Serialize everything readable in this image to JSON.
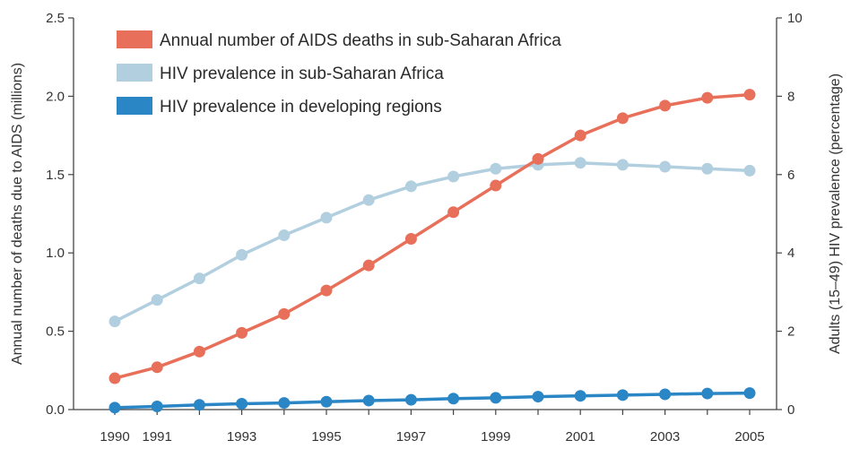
{
  "chart_data": {
    "type": "line",
    "title": "",
    "xlabel": "",
    "ylabel_left": "Annual number of deaths due to AIDS (millions)",
    "ylabel_right": "Adults (15–49) HIV prevalence (percentage)",
    "x": [
      1990,
      1991,
      1992,
      1993,
      1994,
      1995,
      1996,
      1997,
      1998,
      1999,
      2000,
      2001,
      2002,
      2003,
      2004,
      2005
    ],
    "x_tick_labels": [
      "1990",
      "1991",
      "1993",
      "1995",
      "1997",
      "1999",
      "2001",
      "2003",
      "2005"
    ],
    "x_tick_values": [
      1990,
      1991,
      1993,
      1995,
      1997,
      1999,
      2001,
      2003,
      2005
    ],
    "ylim_left": [
      0,
      2.5
    ],
    "y_ticks_left": [
      "0.0",
      "0.5",
      "1.0",
      "1.5",
      "2.0",
      "2.5"
    ],
    "ylim_right": [
      0,
      10
    ],
    "y_ticks_right": [
      "0",
      "2",
      "4",
      "6",
      "8",
      "10"
    ],
    "grid": false,
    "legend_position": "top-left",
    "series": [
      {
        "name": "Annual number of AIDS deaths in sub-Saharan Africa",
        "axis": "left",
        "color": "#e8705a",
        "values": [
          0.2,
          0.27,
          0.37,
          0.49,
          0.61,
          0.76,
          0.92,
          1.09,
          1.26,
          1.43,
          1.6,
          1.75,
          1.86,
          1.94,
          1.99,
          2.01
        ]
      },
      {
        "name": "HIV prevalence in sub-Saharan Africa",
        "axis": "right",
        "color": "#b2cfdf",
        "values": [
          2.25,
          2.8,
          3.35,
          3.95,
          4.45,
          4.9,
          5.35,
          5.7,
          5.95,
          6.15,
          6.25,
          6.3,
          6.25,
          6.2,
          6.15,
          6.1
        ]
      },
      {
        "name": "HIV prevalence in developing regions",
        "axis": "right",
        "color": "#2b86c5",
        "values": [
          0.05,
          0.08,
          0.12,
          0.15,
          0.17,
          0.2,
          0.23,
          0.25,
          0.28,
          0.3,
          0.33,
          0.35,
          0.37,
          0.39,
          0.41,
          0.42
        ]
      }
    ]
  }
}
